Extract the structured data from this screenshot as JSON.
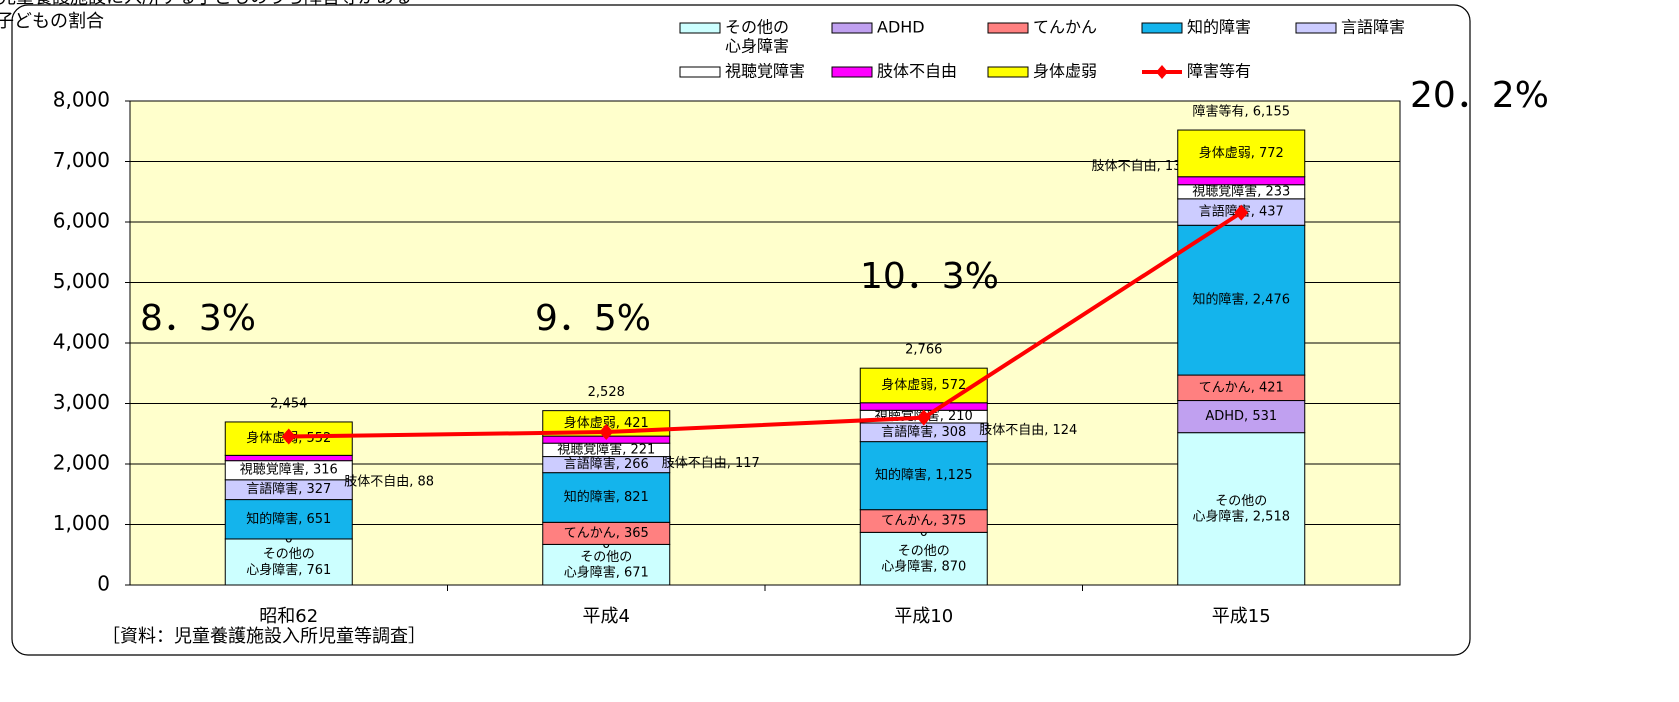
{
  "chart_data": {
    "type": "stacked-bar-line",
    "title": [
      "児童養護施設に入所する子どものうち障害等がある",
      "子どもの割合"
    ],
    "source": "［資料：児童養護施設入所児童等調査］",
    "categories": [
      "昭和62",
      "平成4",
      "平成10",
      "平成15"
    ],
    "ylim": [
      0,
      8000
    ],
    "yticks": [
      0,
      {
        "value": 1000,
        "label": "1,000"
      },
      {
        "value": 2000,
        "label": "2,000"
      },
      {
        "value": 3000,
        "label": "3,000"
      },
      {
        "value": 4000,
        "label": "4,000"
      },
      {
        "value": 5000,
        "label": "5,000"
      },
      {
        "value": 6000,
        "label": "6,000"
      },
      {
        "value": 7000,
        "label": "7,000"
      },
      {
        "value": 8000,
        "label": "8,000"
      }
    ],
    "grid": true,
    "series": [
      {
        "name": "その他の\n心身障害",
        "color": "#ccffff",
        "values": [
          761,
          671,
          870,
          2518
        ],
        "value_labels": [
          "その他の\n心身障害, 761",
          "その他の\n心身障害, 671",
          "その他の\n心身障害, 870",
          "その他の\n心身障害, 2,518"
        ]
      },
      {
        "name": "ADHD",
        "color": "#c0a0f0",
        "values": [
          0,
          0,
          0,
          531
        ],
        "value_labels": [
          "0",
          "0",
          "0",
          "ADHD, 531"
        ]
      },
      {
        "name": "てんかん",
        "color": "#ff8080",
        "values": [
          null,
          365,
          375,
          421
        ],
        "value_labels": [
          null,
          "てんかん, 365",
          "てんかん, 375",
          "てんかん, 421"
        ]
      },
      {
        "name": "知的障害",
        "color": "#14b4ec",
        "values": [
          651,
          821,
          1125,
          2476
        ],
        "value_labels": [
          "知的障害, 651",
          "知的障害, 821",
          "知的障害, 1,125",
          "知的障害, 2,476"
        ]
      },
      {
        "name": "言語障害",
        "color": "#ccccff",
        "values": [
          327,
          266,
          308,
          437
        ],
        "value_labels": [
          "言語障害, 327",
          "言語障害, 266",
          "言語障害, 308",
          "言語障害, 437"
        ]
      },
      {
        "name": "視聴覚障害",
        "color": "#ffffff",
        "values": [
          316,
          221,
          210,
          233
        ],
        "value_labels": [
          "視聴覚障害, 316",
          "視聴覚障害, 221",
          "視聴覚障害, 210",
          "視聴覚障害, 233"
        ]
      },
      {
        "name": "肢体不自由",
        "color": "#ff00ff",
        "values": [
          88,
          117,
          124,
          132
        ],
        "value_labels": [
          "肢体不自由, 88",
          "肢体不自由, 117",
          "肢体不自由, 124",
          "肢体不自由, 132"
        ]
      },
      {
        "name": "身体虚弱",
        "color": "#ffff00",
        "values": [
          552,
          421,
          572,
          772
        ],
        "value_labels": [
          "身体虚弱, 552",
          "身体虚弱, 421",
          "身体虚弱, 572",
          "身体虚弱, 772"
        ]
      }
    ],
    "line": {
      "name": "障害等有",
      "color": "#ff0000",
      "values": [
        2454,
        2528,
        2766,
        6155
      ],
      "value_labels": [
        "2,454",
        "2,528",
        "2,766",
        "障害等有, 6,155"
      ]
    },
    "annotations": [
      "8．3%",
      "9．5%",
      "10．3%",
      "20．2%"
    ]
  }
}
